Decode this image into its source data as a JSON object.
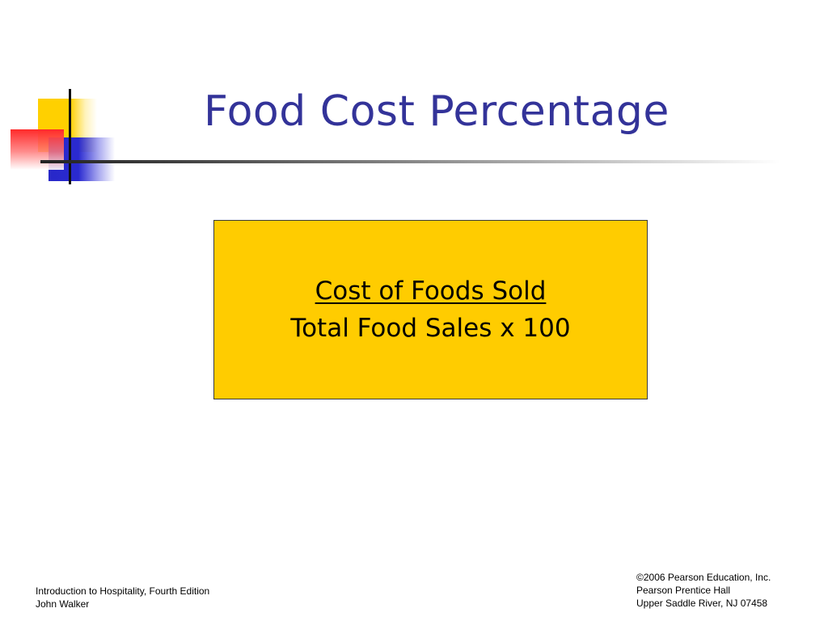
{
  "slide": {
    "title": "Food Cost Percentage",
    "formula": {
      "numerator": "Cost of Foods Sold",
      "denominator": "Total Food Sales x 100"
    },
    "footer_left": {
      "line1": "Introduction to Hospitality, Fourth Edition",
      "line2": "John Walker"
    },
    "footer_right": {
      "line1": "©2006 Pearson Education, Inc.",
      "line2": "Pearson Prentice Hall",
      "line3": "Upper Saddle River, NJ 07458"
    }
  },
  "colors": {
    "title": "#333399",
    "formula_box": "#ffcc00",
    "deco_yellow": "#ffd000",
    "deco_blue": "#2828c8",
    "deco_red": "#ff2a2a"
  }
}
